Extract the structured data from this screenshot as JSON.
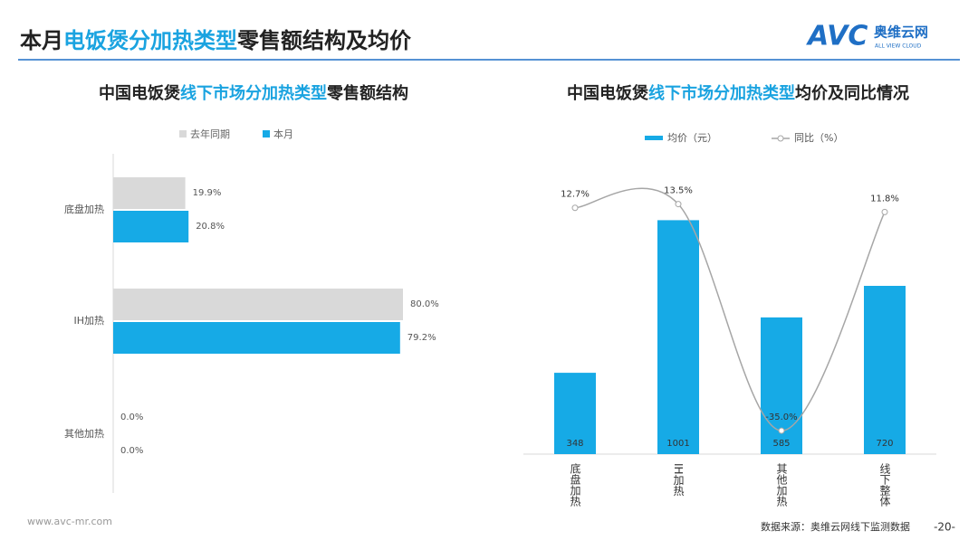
{
  "header": {
    "title_parts": [
      "本月",
      "电饭煲分加热类型",
      "零售额结构及均价"
    ],
    "logo": "AVC",
    "logo_cn": "奥维云网",
    "logo_en": "ALL VIEW CLOUD"
  },
  "chart_data": [
    {
      "type": "hbar",
      "title_parts": [
        "中国电饭煲",
        "线下市场分加热类型",
        "零售额结构"
      ],
      "categories": [
        "底盘加热",
        "IH加热",
        "其他加热"
      ],
      "series": [
        {
          "name": "去年同期",
          "color": "#d9d9d9",
          "values": [
            19.9,
            80.0,
            0.0
          ],
          "value_labels": [
            "19.9%",
            "80.0%",
            "0.0%"
          ]
        },
        {
          "name": "本月",
          "color": "#16aae6",
          "values": [
            20.8,
            79.2,
            0.0
          ],
          "value_labels": [
            "20.8%",
            "79.2%",
            "0.0%"
          ]
        }
      ],
      "xlim": [
        0,
        100
      ]
    },
    {
      "type": "bar_line",
      "title_parts": [
        "中国电饭煲",
        "线下市场分加热类型",
        "均价及同比情况"
      ],
      "categories": [
        "底盘加热",
        "IH加热",
        "其他加热",
        "线下整体"
      ],
      "series": [
        {
          "name": "均价（元）",
          "type": "bar",
          "color": "#16aae6",
          "values": [
            348,
            1001,
            585,
            720
          ]
        },
        {
          "name": "同比（%）",
          "type": "line",
          "axis": "y2",
          "color": "#a6a6a6",
          "values": [
            12.7,
            13.5,
            -35.0,
            11.8
          ],
          "value_labels": [
            "12.7%",
            "13.5%",
            "-35.0%",
            "11.8%"
          ]
        }
      ],
      "ylim": [
        0,
        1200
      ],
      "y2lim": [
        -40,
        20
      ]
    }
  ],
  "footer": {
    "url": "www.avc-mr.com",
    "source": "数据来源：奥维云网线下监测数据",
    "page": "-20-"
  }
}
